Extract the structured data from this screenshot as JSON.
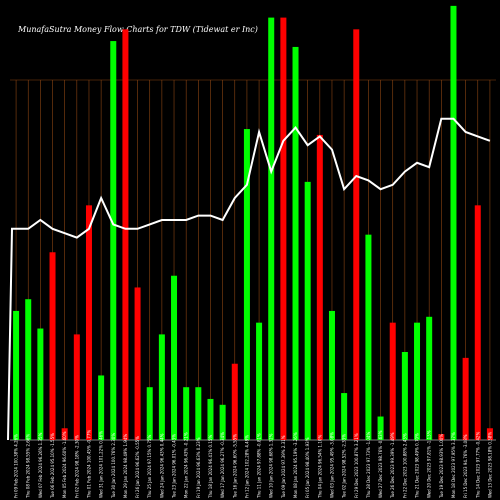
{
  "chart_data": {
    "type": "bar",
    "title": "MunafaSutra  Money Flow  Charts for TDW                             (Tidewat                                        er Inc)",
    "colors": {
      "up": "#00ff00",
      "down": "#ff0000",
      "line": "#ffffff",
      "grid": "#8b4513",
      "background": "#000000"
    },
    "bars": [
      {
        "label": "Fri 09 Feb 2024 100.38% 4.26%",
        "value": 2.2,
        "color": "up"
      },
      {
        "label": "Thu 08 Feb 2024 98.55% 2.66%",
        "value": 2.4,
        "color": "up"
      },
      {
        "label": "Wed 07 Feb 2024 96.26% 1.35%",
        "value": 1.9,
        "color": "up"
      },
      {
        "label": "Tue 06 Feb 2024 95.10% -1.55%",
        "value": 3.2,
        "color": "down"
      },
      {
        "label": "Mon 05 Feb 2024 96.60% -1.60%",
        "value": 0.2,
        "color": "down"
      },
      {
        "label": "Fri 02 Feb 2024 98.18% -2.30%",
        "value": 1.8,
        "color": "down"
      },
      {
        "label": "Thu 01 Feb 2024 100.45% -0.77%",
        "value": 4.0,
        "color": "down"
      },
      {
        "label": "Wed 31 Jan 2024 101.22% 0.46%",
        "value": 1.1,
        "color": "up"
      },
      {
        "label": "Tue 30 Jan 2024 100.76% 2.30%",
        "value": 6.8,
        "color": "up"
      },
      {
        "label": "Mon 29 Jan 2024 98.49% 1.94%",
        "value": 7.0,
        "color": "down"
      },
      {
        "label": "Fri 26 Jan 2024 96.62% -0.55%",
        "value": 2.6,
        "color": "down"
      },
      {
        "label": "Thu 25 Jan 2024 97.15% 0.75%",
        "value": 0.9,
        "color": "up"
      },
      {
        "label": "Wed 24 Jan 2024 96.43% 0.44%",
        "value": 1.8,
        "color": "up"
      },
      {
        "label": "Tue 23 Jan 2024 96.01% -0.43%",
        "value": 2.8,
        "color": "up"
      },
      {
        "label": "Mon 22 Jan 2024 96.43% -0.21%",
        "value": 0.9,
        "color": "up"
      },
      {
        "label": "Fri 19 Jan 2024 96.63% 0.23%",
        "value": 0.9,
        "color": "up"
      },
      {
        "label": "Thu 18 Jan 2024 96.41% 0.15%",
        "value": 0.7,
        "color": "up"
      },
      {
        "label": "Wed 17 Jan 2024 96.27% -0.34%",
        "value": 0.6,
        "color": "up"
      },
      {
        "label": "Tue 16 Jan 2024 96.60% -5.55%",
        "value": 1.3,
        "color": "down"
      },
      {
        "label": "Fri 12 Jan 2024 102.28% 4.49%",
        "value": 5.3,
        "color": "up"
      },
      {
        "label": "Thu 11 Jan 2024 97.88% -0.81%",
        "value": 2.0,
        "color": "up"
      },
      {
        "label": "Wed 10 Jan 2024 98.68% 1.32%",
        "value": 7.2,
        "color": "up"
      },
      {
        "label": "Tue 09 Jan 2024 97.39% 2.31%",
        "value": 7.2,
        "color": "down"
      },
      {
        "label": "Mon 08 Jan 2024 95.19% -3.26%",
        "value": 6.7,
        "color": "up"
      },
      {
        "label": "Fri 05 Jan 2024 98.40% 1.93%",
        "value": 4.4,
        "color": "up"
      },
      {
        "label": "Thu 04 Jan 2024 96.54% 1.10%",
        "value": 5.2,
        "color": "down"
      },
      {
        "label": "Wed 03 Jan 2024 95.49% -3.08%",
        "value": 2.2,
        "color": "up"
      },
      {
        "label": "Tue 02 Jan 2024 98.52% -2.33%",
        "value": 0.8,
        "color": "up"
      },
      {
        "label": "Fri 29 Dec 2023 100.87% 3.21%",
        "value": 7.0,
        "color": "down"
      },
      {
        "label": "Thu 28 Dec 2023 97.73% -1.04%",
        "value": 3.5,
        "color": "up"
      },
      {
        "label": "Wed 27 Dec 2023 98.76% -0.63%",
        "value": 0.4,
        "color": "up"
      },
      {
        "label": "Tue 26 Dec 2023 99.39% -1.49%",
        "value": 2.0,
        "color": "down"
      },
      {
        "label": "Fri 22 Dec 2023 100.88% 2.43%",
        "value": 1.5,
        "color": "up"
      },
      {
        "label": "Thu 21 Dec 2023 98.49% 0.70%",
        "value": 2.0,
        "color": "up"
      },
      {
        "label": "Wed 20 Dec 2023 97.81% -1.13%",
        "value": 2.1,
        "color": "up"
      },
      {
        "label": "Tue 19 Dec 2023 98.93% 1.00%",
        "value": 0.1,
        "color": "down"
      },
      {
        "label": "Mon 18 Dec 2023 97.95% 3.37%",
        "value": 7.4,
        "color": "up"
      },
      {
        "label": "Fri 15 Dec 2023 94.76% -3.08%",
        "value": 1.4,
        "color": "down"
      },
      {
        "label": "Thu 14 Dec 2023 97.77% -0.42%",
        "value": 4.0,
        "color": "down"
      },
      {
        "label": "Wed 13 Dec 2023 98.18% 0.38%",
        "value": 0.2,
        "color": "down"
      }
    ],
    "line_values": [
      48,
      48,
      50,
      48,
      47,
      46,
      48,
      55,
      49,
      48,
      48,
      49,
      50,
      50,
      50,
      51,
      51,
      50,
      55,
      58,
      70,
      61,
      68,
      71,
      67,
      69,
      66,
      57,
      60,
      59,
      57,
      58,
      61,
      63,
      62,
      73,
      73,
      70,
      69,
      68
    ],
    "y_max": 7.5,
    "line_max": 100
  }
}
